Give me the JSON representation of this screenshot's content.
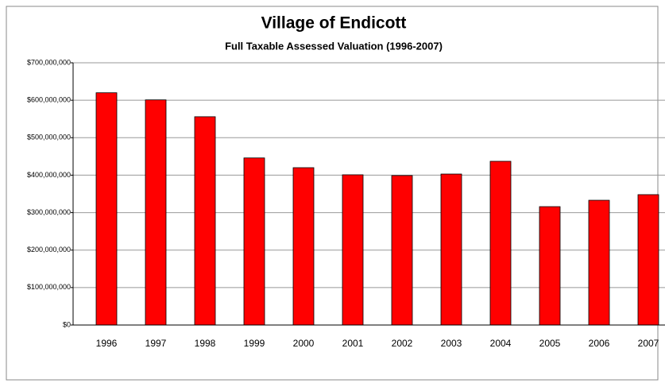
{
  "chart_data": {
    "type": "bar",
    "title": "Village of Endicott",
    "subtitle": "Full Taxable Assessed Valuation  (1996-2007)",
    "categories": [
      "1996",
      "1997",
      "1998",
      "1999",
      "2000",
      "2001",
      "2002",
      "2003",
      "2004",
      "2005",
      "2006",
      "2007"
    ],
    "values": [
      620000000,
      601000000,
      556000000,
      446000000,
      420000000,
      401000000,
      399000000,
      403000000,
      437000000,
      316000000,
      333000000,
      348000000
    ],
    "color": "#ff0000",
    "ylim": [
      0,
      700000000
    ],
    "yticks": [
      {
        "value": 0,
        "label": "$0"
      },
      {
        "value": 100000000,
        "label": "$100,000,000"
      },
      {
        "value": 200000000,
        "label": "$200,000,000"
      },
      {
        "value": 300000000,
        "label": "$300,000,000"
      },
      {
        "value": 400000000,
        "label": "$400,000,000"
      },
      {
        "value": 500000000,
        "label": "$500,000,000"
      },
      {
        "value": 600000000,
        "label": "$600,000,000"
      },
      {
        "value": 700000000,
        "label": "$700,000,000"
      }
    ],
    "grid": true
  }
}
